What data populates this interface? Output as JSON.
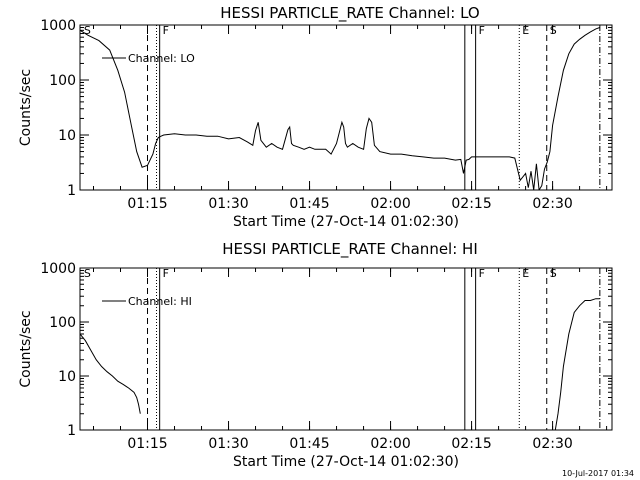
{
  "footer_timestamp": "10-Jul-2017 01:34",
  "chart_data": [
    {
      "type": "line",
      "title": "HESSI PARTICLE_RATE Channel: LO",
      "xlabel": "Start Time (27-Oct-14 01:02:30)",
      "ylabel": "Counts/sec",
      "yscale": "log",
      "ylim": [
        1,
        1000
      ],
      "xlim": [
        "01:02:30",
        "02:41:00"
      ],
      "ytick_labels": [
        "1",
        "10",
        "100",
        "1000"
      ],
      "ytick_values": [
        1,
        10,
        100,
        1000
      ],
      "xtick_labels": [
        "01:15",
        "01:30",
        "01:45",
        "02:00",
        "02:15",
        "02:30"
      ],
      "xtick_values": [
        "01:15",
        "01:30",
        "01:45",
        "02:00",
        "02:15",
        "02:30"
      ],
      "legend": {
        "label": "Channel: LO",
        "placement": "top-left"
      },
      "markers": [
        {
          "label": "S",
          "x": "01:02:40",
          "style": "none"
        },
        {
          "label": "",
          "x": "01:15:00",
          "style": "dashed"
        },
        {
          "label": "",
          "x": "01:16:40",
          "style": "dotted"
        },
        {
          "label": "F",
          "x": "01:17:15",
          "style": "solid"
        },
        {
          "label": "",
          "x": "02:13:45",
          "style": "solid"
        },
        {
          "label": "F",
          "x": "02:15:45",
          "style": "solid"
        },
        {
          "label": "E",
          "x": "02:23:50",
          "style": "dotted"
        },
        {
          "label": "S",
          "x": "02:28:55",
          "style": "dashed"
        },
        {
          "label": "",
          "x": "02:38:45",
          "style": "dashdot"
        }
      ],
      "series": [
        {
          "name": "Channel: LO",
          "x": [
            "01:02:30",
            "01:04:00",
            "01:06:00",
            "01:08:00",
            "01:09:30",
            "01:10:45",
            "01:12:00",
            "01:13:00",
            "01:14:00",
            "01:15:00",
            "01:16:00",
            "01:16:30",
            "01:17:00",
            "01:17:30",
            "01:18:00",
            "01:20:00",
            "01:22:00",
            "01:24:00",
            "01:26:00",
            "01:28:00",
            "01:30:00",
            "01:32:00",
            "01:33:30",
            "01:34:30",
            "01:35:00",
            "01:35:30",
            "01:36:00",
            "01:37:00",
            "01:38:00",
            "01:39:00",
            "01:40:00",
            "01:41:00",
            "01:41:20",
            "01:41:40",
            "01:42:00",
            "01:43:00",
            "01:44:00",
            "01:45:00",
            "01:46:00",
            "01:47:00",
            "01:48:00",
            "01:49:00",
            "01:50:00",
            "01:51:00",
            "01:51:20",
            "01:51:40",
            "01:52:00",
            "01:53:00",
            "01:54:00",
            "01:55:00",
            "01:55:30",
            "01:56:00",
            "01:56:30",
            "01:57:00",
            "01:58:00",
            "02:00:00",
            "02:02:00",
            "02:04:00",
            "02:06:00",
            "02:08:00",
            "02:10:00",
            "02:12:00",
            "02:13:00",
            "02:13:30",
            "02:14:00",
            "02:14:30",
            "02:15:00",
            "02:16:00",
            "02:18:00",
            "02:20:00",
            "02:22:00",
            "02:23:00",
            "02:24:00",
            "02:25:00",
            "02:25:30",
            "02:26:00",
            "02:26:30",
            "02:27:00",
            "02:27:30",
            "02:28:00",
            "02:28:30",
            "02:29:00",
            "02:29:30",
            "02:30:00",
            "02:31:00",
            "02:32:00",
            "02:33:00",
            "02:34:00",
            "02:35:00",
            "02:36:00",
            "02:37:00",
            "02:38:00",
            "02:38:45"
          ],
          "y": [
            800,
            650,
            520,
            350,
            150,
            60,
            15,
            5,
            2.6,
            2.8,
            4.5,
            7,
            9,
            9.5,
            10,
            10.5,
            10,
            10,
            9.5,
            9.5,
            8.5,
            9,
            7.5,
            6.5,
            12,
            17,
            8,
            6,
            7,
            6,
            5.5,
            12.5,
            14,
            7,
            6.5,
            6,
            5.5,
            6,
            5.5,
            5.5,
            5.5,
            4.5,
            7,
            17,
            14,
            7,
            6,
            7,
            6,
            5.5,
            13,
            20,
            17,
            6.5,
            5,
            4.5,
            4.5,
            4.2,
            4,
            3.8,
            3.8,
            3.5,
            3.6,
            2,
            3.5,
            3.6,
            4,
            4,
            4,
            4,
            4,
            3.8,
            1.5,
            2,
            1.1,
            2.2,
            1,
            3,
            1,
            1.2,
            2.4,
            3.2,
            5,
            15,
            50,
            150,
            300,
            450,
            550,
            650,
            750,
            850,
            900
          ]
        }
      ]
    },
    {
      "type": "line",
      "title": "HESSI PARTICLE_RATE Channel: HI",
      "xlabel": "Start Time (27-Oct-14 01:02:30)",
      "ylabel": "Counts/sec",
      "yscale": "log",
      "ylim": [
        1,
        1000
      ],
      "xlim": [
        "01:02:30",
        "02:41:00"
      ],
      "ytick_labels": [
        "1",
        "10",
        "100",
        "1000"
      ],
      "ytick_values": [
        1,
        10,
        100,
        1000
      ],
      "xtick_labels": [
        "01:15",
        "01:30",
        "01:45",
        "02:00",
        "02:15",
        "02:30"
      ],
      "xtick_values": [
        "01:15",
        "01:30",
        "01:45",
        "02:00",
        "02:15",
        "02:30"
      ],
      "legend": {
        "label": "Channel: HI",
        "placement": "top-left"
      },
      "markers": [
        {
          "label": "S",
          "x": "01:02:40",
          "style": "none"
        },
        {
          "label": "",
          "x": "01:15:00",
          "style": "dashed"
        },
        {
          "label": "",
          "x": "01:16:40",
          "style": "dotted"
        },
        {
          "label": "F",
          "x": "01:17:15",
          "style": "solid"
        },
        {
          "label": "",
          "x": "02:13:45",
          "style": "solid"
        },
        {
          "label": "F",
          "x": "02:15:45",
          "style": "solid"
        },
        {
          "label": "E",
          "x": "02:23:50",
          "style": "dotted"
        },
        {
          "label": "S",
          "x": "02:28:55",
          "style": "dashed"
        },
        {
          "label": "",
          "x": "02:38:45",
          "style": "dashdot"
        }
      ],
      "series": [
        {
          "name": "Channel: HI",
          "x": [
            "01:02:30",
            "01:03:30",
            "01:04:30",
            "01:05:30",
            "01:06:30",
            "01:07:30",
            "01:08:30",
            "01:09:30",
            "01:10:30",
            "01:11:30",
            "01:12:30",
            "01:13:00",
            "01:13:20",
            "01:13:40",
            "01:30:30",
            "02:30:30",
            "02:31:00",
            "02:31:30",
            "02:32:00",
            "02:33:00",
            "02:34:00",
            "02:35:00",
            "02:36:00",
            "02:37:00",
            "02:38:00",
            "02:38:45"
          ],
          "y": [
            60,
            45,
            30,
            20,
            15,
            12,
            10,
            8,
            7,
            6,
            5,
            4,
            3,
            2,
            null,
            1,
            2,
            5,
            15,
            60,
            150,
            200,
            250,
            250,
            270,
            270
          ]
        }
      ]
    }
  ]
}
